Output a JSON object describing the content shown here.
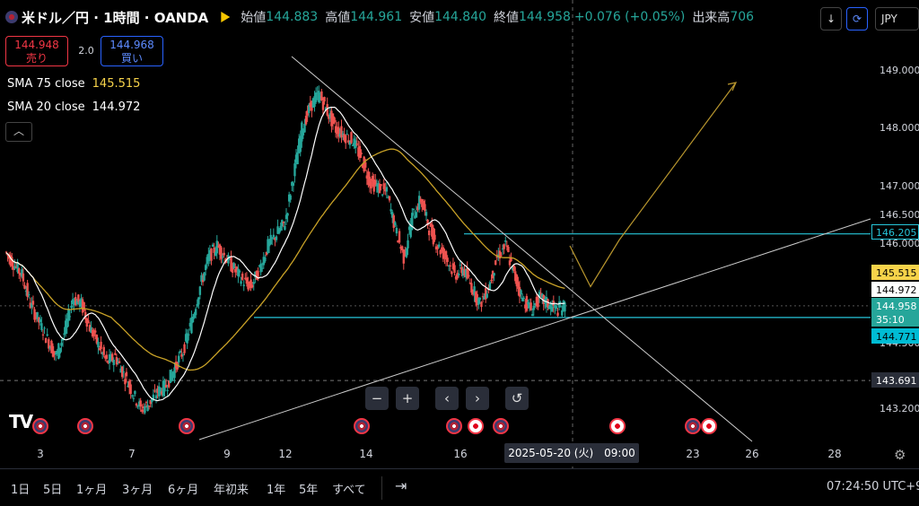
{
  "header": {
    "symbol": "米ドル／円 · 1時間 · OANDA",
    "open_label": "始値",
    "open": "144.883",
    "high_label": "高値",
    "high": "144.961",
    "low_label": "安値",
    "low": "144.840",
    "close_label": "終値",
    "close": "144.958",
    "change": "+0.076 (+0.05%)",
    "volume_label": "出来高",
    "volume": "706"
  },
  "trade": {
    "sell_price": "144.948",
    "sell_label": "売り",
    "spread": "2.0",
    "buy_price": "144.968",
    "buy_label": "買い"
  },
  "indicators": [
    {
      "label": "SMA 75 close",
      "value": "145.515",
      "color": "#f7d34a"
    },
    {
      "label": "SMA 20 close",
      "value": "144.972",
      "color": "#ffffff"
    }
  ],
  "toolbar": {
    "currency": "JPY",
    "down_icon": "↓",
    "sync_icon": "⟳"
  },
  "nav_buttons": {
    "zoom_out": "−",
    "zoom_in": "+",
    "left": "‹",
    "right": "›",
    "reset": "↺"
  },
  "price_axis": {
    "ticks": [
      "149.000",
      "148.000",
      "147.000",
      "146.500",
      "146.000",
      "144.500",
      "143.200"
    ],
    "labels": [
      {
        "text": "146.205",
        "bg": "#000000",
        "fg": "#26c6da",
        "border": "#26c6da"
      },
      {
        "text": "145.515",
        "bg": "#f7d34a",
        "fg": "#000000",
        "border": "#f7d34a"
      },
      {
        "text": "144.972",
        "bg": "#ffffff",
        "fg": "#000000",
        "border": "#ffffff"
      },
      {
        "text": "144.958",
        "bg": "#26a69a",
        "fg": "#ffffff",
        "border": "#26a69a"
      },
      {
        "text": "35:10",
        "bg": "#26a69a",
        "fg": "#ffffff",
        "border": "#26a69a"
      },
      {
        "text": "144.771",
        "bg": "#00bcd4",
        "fg": "#000000",
        "border": "#00bcd4"
      },
      {
        "text": "143.691",
        "bg": "#2a2e39",
        "fg": "#ffffff",
        "border": "#2a2e39"
      }
    ]
  },
  "time_axis": {
    "ticks": [
      "3",
      "7",
      "9",
      "12",
      "14",
      "16",
      "23",
      "26",
      "28"
    ],
    "crosshair_label": "2025-05-20 (火)　09:00"
  },
  "ranges": [
    "1日",
    "5日",
    "1ヶ月",
    "3ヶ月",
    "6ヶ月",
    "年初来",
    "1年",
    "5年",
    "すべて"
  ],
  "clock": "07:24:50 UTC+9",
  "events": [
    "us",
    "us",
    "us",
    "us",
    "jp",
    "us",
    "jp",
    "us",
    "jp"
  ],
  "colors": {
    "up": "#26a69a",
    "down": "#ef5350",
    "sma75": "#c9a227",
    "sma20": "#ffffff",
    "hline": "#26c6da",
    "trend": "#cccccc",
    "forecast": "#b8962e"
  },
  "chart_data": {
    "type": "candlestick",
    "symbol": "USDJPY",
    "interval": "1h",
    "ylim": [
      143.0,
      149.3
    ],
    "x_dates": [
      "3",
      "7",
      "9",
      "12",
      "14",
      "16",
      "23",
      "26",
      "28"
    ],
    "horizontal_levels": [
      146.205,
      144.771,
      143.691
    ],
    "sma75_last": 145.515,
    "sma20_last": 144.972,
    "last_close": 144.958,
    "price_path": [
      145.9,
      145.7,
      145.5,
      145.0,
      144.7,
      144.4,
      144.1,
      144.5,
      145.1,
      145.0,
      144.6,
      144.3,
      144.0,
      144.1,
      143.8,
      143.5,
      143.2,
      143.3,
      143.5,
      143.6,
      143.9,
      144.2,
      144.7,
      145.3,
      145.8,
      146.0,
      145.8,
      145.6,
      145.4,
      145.3,
      145.6,
      146.0,
      146.2,
      146.4,
      147.2,
      148.0,
      148.4,
      148.6,
      148.3,
      148.0,
      147.9,
      147.8,
      147.5,
      147.1,
      147.0,
      146.9,
      146.3,
      145.8,
      146.5,
      146.8,
      146.3,
      146.0,
      145.8,
      145.5,
      145.6,
      145.3,
      145.0,
      145.3,
      145.8,
      146.0,
      145.5,
      145.1,
      144.9,
      145.1,
      145.0,
      144.9,
      144.958
    ],
    "forecast_path": [
      [
        635,
        146.0
      ],
      [
        658,
        145.3
      ],
      [
        690,
        146.1
      ],
      [
        820,
        148.8
      ]
    ]
  }
}
